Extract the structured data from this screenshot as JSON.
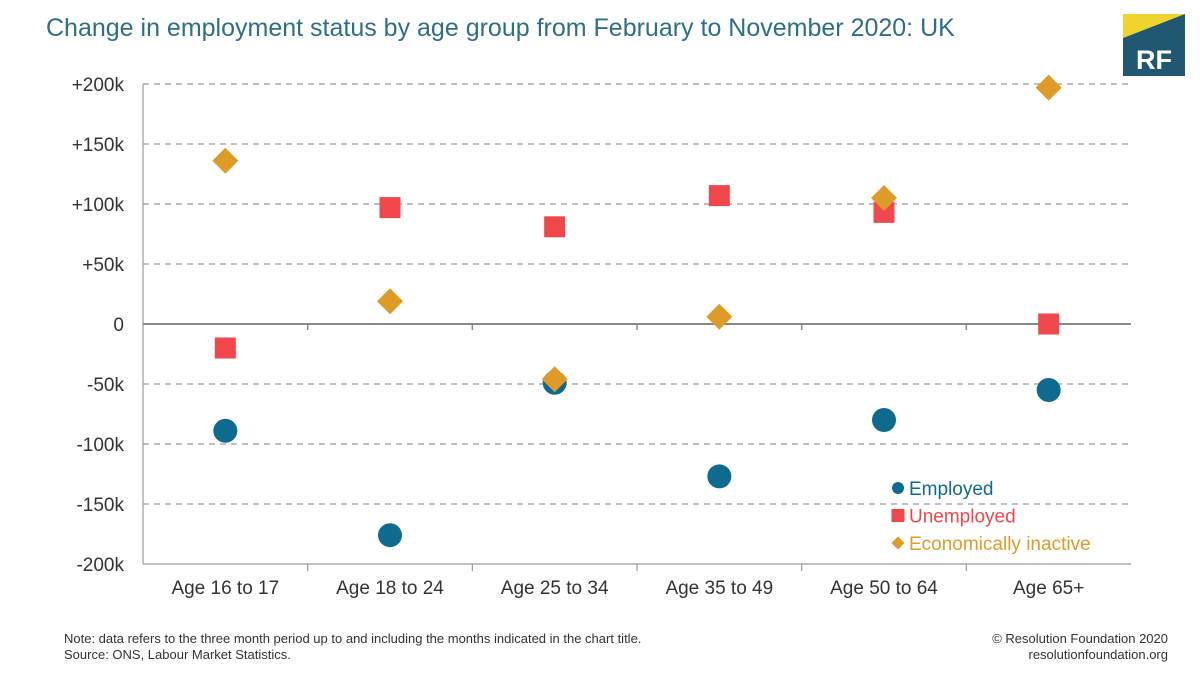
{
  "title": "Change in employment status by age group from February to November 2020: UK",
  "logo": {
    "text": "RF",
    "colors": {
      "yellow": "#f0d32c",
      "teal": "#1f5870",
      "text": "#ffffff"
    }
  },
  "chart_data": {
    "type": "scatter",
    "categories": [
      "Age 16 to 17",
      "Age 18 to 24",
      "Age 25 to 34",
      "Age 35 to 49",
      "Age 50 to 64",
      "Age 65+"
    ],
    "ylim": [
      -200,
      200
    ],
    "y_unit": "thousands",
    "y_ticks": [
      {
        "value": 200,
        "label": "+200k"
      },
      {
        "value": 150,
        "label": "+150k"
      },
      {
        "value": 100,
        "label": "+100k"
      },
      {
        "value": 50,
        "label": "+50k"
      },
      {
        "value": 0,
        "label": "0"
      },
      {
        "value": -50,
        "label": "-50k"
      },
      {
        "value": -100,
        "label": "-100k"
      },
      {
        "value": -150,
        "label": "-150k"
      },
      {
        "value": -200,
        "label": "-200k"
      }
    ],
    "grid": true,
    "legend_position": "bottom-right",
    "series": [
      {
        "name": "Employed",
        "marker": "circle",
        "color": "#0e6a8f",
        "values": [
          -89,
          -176,
          -49,
          -127,
          -80,
          -55
        ]
      },
      {
        "name": "Unemployed",
        "marker": "square",
        "color": "#ef474c",
        "values": [
          -20,
          97,
          81,
          107,
          93,
          0
        ]
      },
      {
        "name": "Economically inactive",
        "marker": "diamond",
        "color": "#df9b28",
        "values": [
          136,
          19,
          -46,
          6,
          105,
          197
        ]
      }
    ]
  },
  "footer": {
    "note": "Note: data refers to the three month period up to and including the months indicated in the chart title.",
    "source": "Source: ONS, Labour Market Statistics.",
    "copyright": "© Resolution Foundation 2020",
    "website": "resolutionfoundation.org"
  }
}
